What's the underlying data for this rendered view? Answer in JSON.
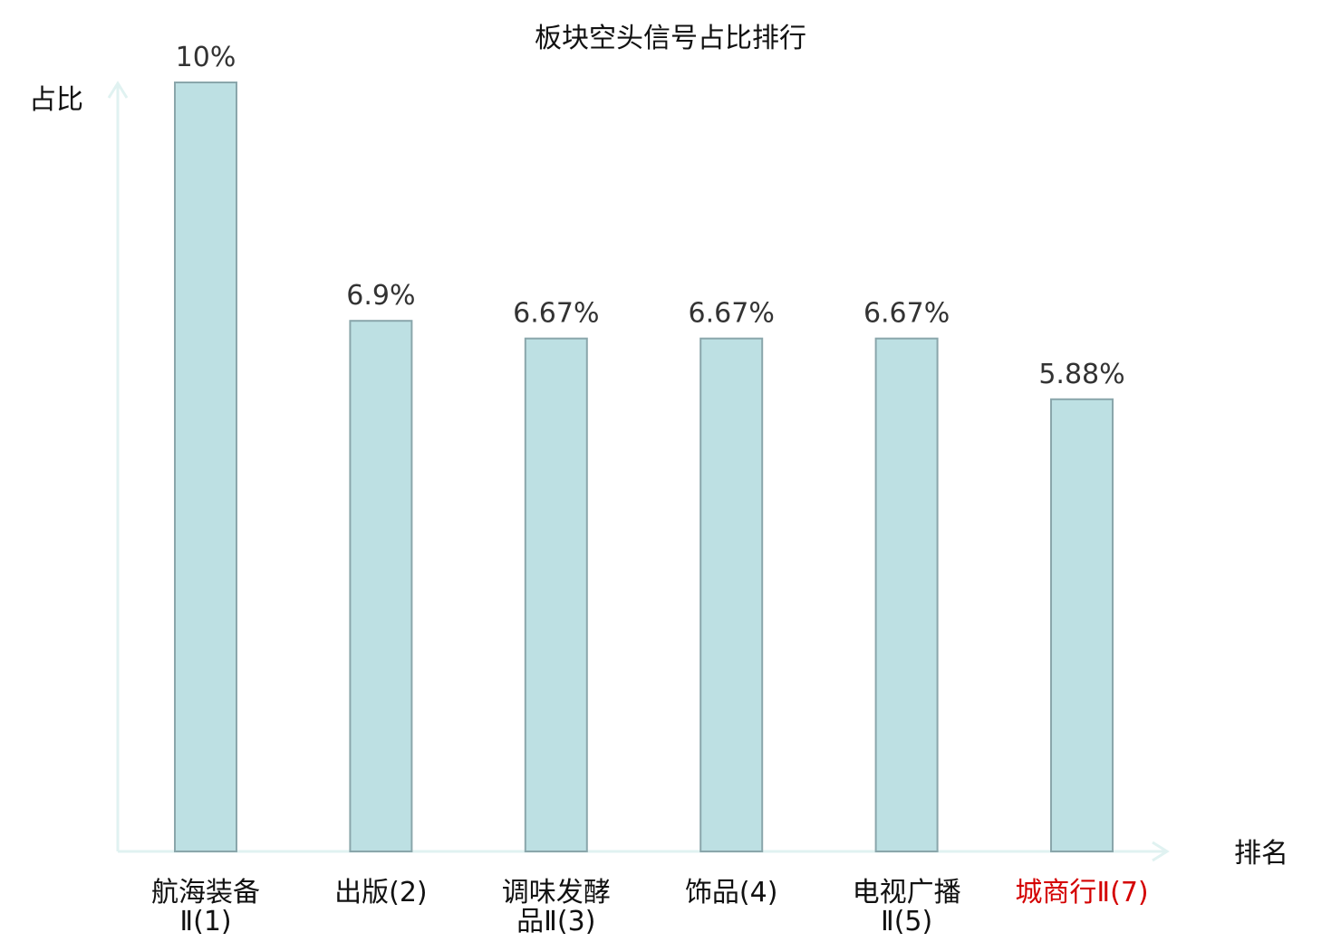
{
  "chart_data": {
    "type": "bar",
    "title": "板块空头信号占比排行",
    "xlabel": "排名",
    "ylabel": "占比",
    "ylim": [
      0,
      10
    ],
    "grid": false,
    "categories": [
      {
        "lines": [
          "航海装备",
          "Ⅱ(1)"
        ]
      },
      {
        "lines": [
          "出版(2)"
        ]
      },
      {
        "lines": [
          "调味发酵",
          "品Ⅱ(3)"
        ]
      },
      {
        "lines": [
          "饰品(4)"
        ]
      },
      {
        "lines": [
          "电视广播",
          "Ⅱ(5)"
        ]
      },
      {
        "lines": [
          "城商行Ⅱ(7)"
        ],
        "highlight": true
      }
    ],
    "values": [
      10,
      6.9,
      6.67,
      6.67,
      6.67,
      5.88
    ],
    "value_labels": [
      "10%",
      "6.9%",
      "6.67%",
      "6.67%",
      "6.67%",
      "5.88%"
    ],
    "colors": {
      "bar_fill": "#bde0e3",
      "bar_stroke": "#8aa6ab",
      "axis": "#e0f2f1",
      "highlight_text": "#d40000"
    }
  }
}
